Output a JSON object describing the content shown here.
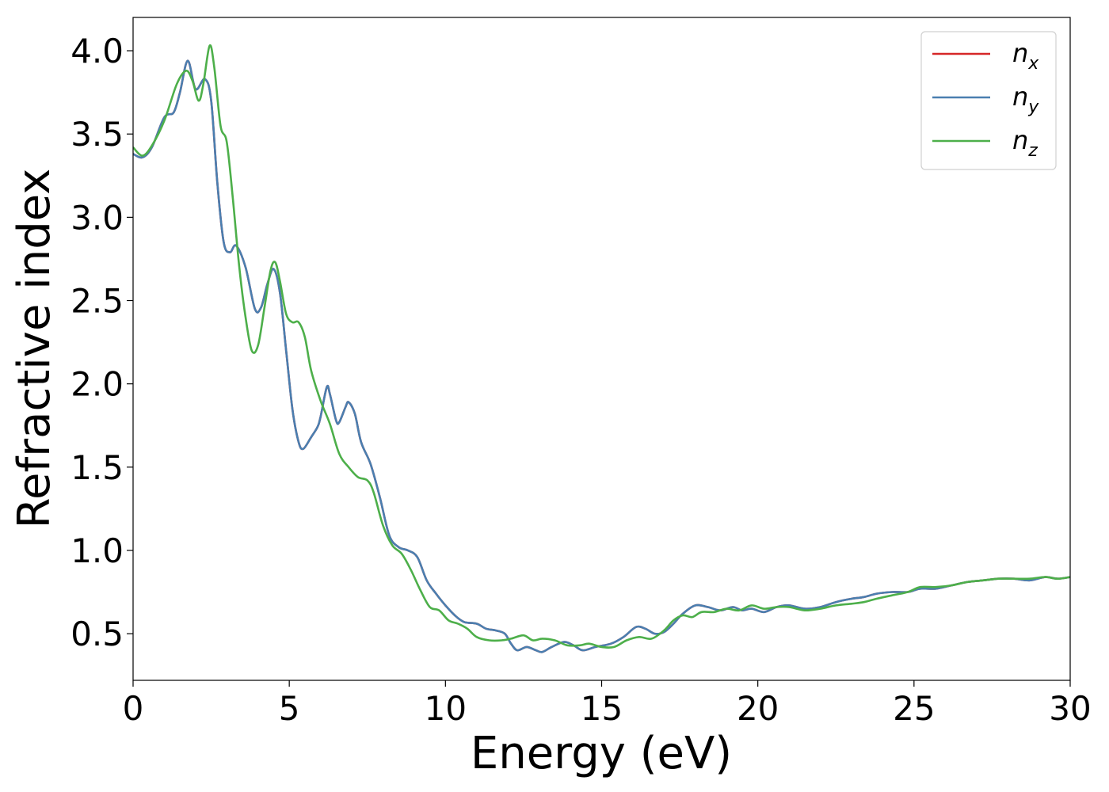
{
  "chart_data": {
    "type": "line",
    "title": "",
    "xlabel": "Energy (eV)",
    "ylabel": "Refractive index",
    "xlim": [
      0,
      30
    ],
    "ylim": [
      0.22,
      4.2
    ],
    "x_ticks": [
      "0",
      "5",
      "10",
      "15",
      "20",
      "25",
      "30"
    ],
    "y_ticks": [
      "0.5",
      "1.0",
      "1.5",
      "2.0",
      "2.5",
      "3.0",
      "3.5",
      "4.0"
    ],
    "grid": false,
    "legend_position": "top-right",
    "series": [
      {
        "name": "n_x",
        "legend_main": "n",
        "legend_sub": "x",
        "color": "#d62728",
        "points": [
          [
            0,
            3.38
          ],
          [
            0.3,
            3.36
          ],
          [
            0.6,
            3.42
          ],
          [
            1.0,
            3.6
          ],
          [
            1.3,
            3.63
          ],
          [
            1.5,
            3.75
          ],
          [
            1.75,
            3.94
          ],
          [
            2.0,
            3.77
          ],
          [
            2.3,
            3.83
          ],
          [
            2.5,
            3.7
          ],
          [
            2.7,
            3.2
          ],
          [
            2.9,
            2.85
          ],
          [
            3.1,
            2.79
          ],
          [
            3.3,
            2.83
          ],
          [
            3.6,
            2.7
          ],
          [
            3.9,
            2.45
          ],
          [
            4.1,
            2.46
          ],
          [
            4.3,
            2.6
          ],
          [
            4.5,
            2.69
          ],
          [
            4.7,
            2.55
          ],
          [
            4.9,
            2.2
          ],
          [
            5.1,
            1.85
          ],
          [
            5.3,
            1.65
          ],
          [
            5.45,
            1.61
          ],
          [
            5.7,
            1.68
          ],
          [
            5.9,
            1.74
          ],
          [
            6.0,
            1.8
          ],
          [
            6.2,
            1.98
          ],
          [
            6.3,
            1.94
          ],
          [
            6.5,
            1.78
          ],
          [
            6.6,
            1.77
          ],
          [
            6.8,
            1.86
          ],
          [
            6.9,
            1.89
          ],
          [
            7.1,
            1.82
          ],
          [
            7.3,
            1.65
          ],
          [
            7.6,
            1.52
          ],
          [
            7.9,
            1.32
          ],
          [
            8.2,
            1.09
          ],
          [
            8.5,
            1.02
          ],
          [
            8.8,
            1.0
          ],
          [
            9.1,
            0.96
          ],
          [
            9.4,
            0.82
          ],
          [
            9.7,
            0.74
          ],
          [
            10.0,
            0.67
          ],
          [
            10.3,
            0.61
          ],
          [
            10.6,
            0.57
          ],
          [
            11.0,
            0.56
          ],
          [
            11.3,
            0.53
          ],
          [
            11.6,
            0.52
          ],
          [
            11.9,
            0.5
          ],
          [
            12.1,
            0.44
          ],
          [
            12.3,
            0.4
          ],
          [
            12.6,
            0.42
          ],
          [
            12.9,
            0.4
          ],
          [
            13.1,
            0.39
          ],
          [
            13.4,
            0.42
          ],
          [
            13.8,
            0.45
          ],
          [
            14.1,
            0.43
          ],
          [
            14.4,
            0.4
          ],
          [
            14.8,
            0.42
          ],
          [
            15.3,
            0.44
          ],
          [
            15.7,
            0.48
          ],
          [
            16.1,
            0.54
          ],
          [
            16.4,
            0.53
          ],
          [
            16.7,
            0.5
          ],
          [
            17.0,
            0.51
          ],
          [
            17.3,
            0.56
          ],
          [
            17.6,
            0.62
          ],
          [
            18.0,
            0.67
          ],
          [
            18.4,
            0.66
          ],
          [
            18.8,
            0.64
          ],
          [
            19.2,
            0.66
          ],
          [
            19.5,
            0.64
          ],
          [
            19.8,
            0.65
          ],
          [
            20.2,
            0.63
          ],
          [
            20.6,
            0.66
          ],
          [
            21.0,
            0.67
          ],
          [
            21.5,
            0.65
          ],
          [
            22.0,
            0.66
          ],
          [
            22.5,
            0.69
          ],
          [
            23.0,
            0.71
          ],
          [
            23.4,
            0.72
          ],
          [
            23.8,
            0.74
          ],
          [
            24.3,
            0.75
          ],
          [
            24.8,
            0.75
          ],
          [
            25.2,
            0.77
          ],
          [
            25.7,
            0.77
          ],
          [
            26.2,
            0.79
          ],
          [
            26.7,
            0.81
          ],
          [
            27.2,
            0.82
          ],
          [
            27.7,
            0.83
          ],
          [
            28.2,
            0.83
          ],
          [
            28.7,
            0.82
          ],
          [
            29.2,
            0.84
          ],
          [
            29.6,
            0.83
          ],
          [
            30.0,
            0.84
          ]
        ]
      },
      {
        "name": "n_y",
        "legend_main": "n",
        "legend_sub": "y",
        "color": "#4a7fb0",
        "points": [
          [
            0,
            3.38
          ],
          [
            0.3,
            3.36
          ],
          [
            0.6,
            3.42
          ],
          [
            1.0,
            3.6
          ],
          [
            1.3,
            3.63
          ],
          [
            1.5,
            3.75
          ],
          [
            1.75,
            3.94
          ],
          [
            2.0,
            3.77
          ],
          [
            2.3,
            3.83
          ],
          [
            2.5,
            3.7
          ],
          [
            2.7,
            3.2
          ],
          [
            2.9,
            2.85
          ],
          [
            3.1,
            2.79
          ],
          [
            3.3,
            2.83
          ],
          [
            3.6,
            2.7
          ],
          [
            3.9,
            2.45
          ],
          [
            4.1,
            2.46
          ],
          [
            4.3,
            2.6
          ],
          [
            4.5,
            2.69
          ],
          [
            4.7,
            2.55
          ],
          [
            4.9,
            2.2
          ],
          [
            5.1,
            1.85
          ],
          [
            5.3,
            1.65
          ],
          [
            5.45,
            1.61
          ],
          [
            5.7,
            1.68
          ],
          [
            5.9,
            1.74
          ],
          [
            6.0,
            1.8
          ],
          [
            6.2,
            1.98
          ],
          [
            6.3,
            1.94
          ],
          [
            6.5,
            1.78
          ],
          [
            6.6,
            1.77
          ],
          [
            6.8,
            1.86
          ],
          [
            6.9,
            1.89
          ],
          [
            7.1,
            1.82
          ],
          [
            7.3,
            1.65
          ],
          [
            7.6,
            1.52
          ],
          [
            7.9,
            1.32
          ],
          [
            8.2,
            1.09
          ],
          [
            8.5,
            1.02
          ],
          [
            8.8,
            1.0
          ],
          [
            9.1,
            0.96
          ],
          [
            9.4,
            0.82
          ],
          [
            9.7,
            0.74
          ],
          [
            10.0,
            0.67
          ],
          [
            10.3,
            0.61
          ],
          [
            10.6,
            0.57
          ],
          [
            11.0,
            0.56
          ],
          [
            11.3,
            0.53
          ],
          [
            11.6,
            0.52
          ],
          [
            11.9,
            0.5
          ],
          [
            12.1,
            0.44
          ],
          [
            12.3,
            0.4
          ],
          [
            12.6,
            0.42
          ],
          [
            12.9,
            0.4
          ],
          [
            13.1,
            0.39
          ],
          [
            13.4,
            0.42
          ],
          [
            13.8,
            0.45
          ],
          [
            14.1,
            0.43
          ],
          [
            14.4,
            0.4
          ],
          [
            14.8,
            0.42
          ],
          [
            15.3,
            0.44
          ],
          [
            15.7,
            0.48
          ],
          [
            16.1,
            0.54
          ],
          [
            16.4,
            0.53
          ],
          [
            16.7,
            0.5
          ],
          [
            17.0,
            0.51
          ],
          [
            17.3,
            0.56
          ],
          [
            17.6,
            0.62
          ],
          [
            18.0,
            0.67
          ],
          [
            18.4,
            0.66
          ],
          [
            18.8,
            0.64
          ],
          [
            19.2,
            0.66
          ],
          [
            19.5,
            0.64
          ],
          [
            19.8,
            0.65
          ],
          [
            20.2,
            0.63
          ],
          [
            20.6,
            0.66
          ],
          [
            21.0,
            0.67
          ],
          [
            21.5,
            0.65
          ],
          [
            22.0,
            0.66
          ],
          [
            22.5,
            0.69
          ],
          [
            23.0,
            0.71
          ],
          [
            23.4,
            0.72
          ],
          [
            23.8,
            0.74
          ],
          [
            24.3,
            0.75
          ],
          [
            24.8,
            0.75
          ],
          [
            25.2,
            0.77
          ],
          [
            25.7,
            0.77
          ],
          [
            26.2,
            0.79
          ],
          [
            26.7,
            0.81
          ],
          [
            27.2,
            0.82
          ],
          [
            27.7,
            0.83
          ],
          [
            28.2,
            0.83
          ],
          [
            28.7,
            0.82
          ],
          [
            29.2,
            0.84
          ],
          [
            29.6,
            0.83
          ],
          [
            30.0,
            0.84
          ]
        ]
      },
      {
        "name": "n_z",
        "legend_main": "n",
        "legend_sub": "z",
        "color": "#4daf4a",
        "points": [
          [
            0,
            3.42
          ],
          [
            0.3,
            3.37
          ],
          [
            0.6,
            3.43
          ],
          [
            1.0,
            3.58
          ],
          [
            1.4,
            3.8
          ],
          [
            1.7,
            3.88
          ],
          [
            1.9,
            3.82
          ],
          [
            2.1,
            3.7
          ],
          [
            2.25,
            3.8
          ],
          [
            2.45,
            4.03
          ],
          [
            2.6,
            3.9
          ],
          [
            2.8,
            3.55
          ],
          [
            3.0,
            3.45
          ],
          [
            3.2,
            3.1
          ],
          [
            3.4,
            2.7
          ],
          [
            3.6,
            2.4
          ],
          [
            3.8,
            2.2
          ],
          [
            4.0,
            2.23
          ],
          [
            4.2,
            2.45
          ],
          [
            4.4,
            2.68
          ],
          [
            4.55,
            2.73
          ],
          [
            4.7,
            2.62
          ],
          [
            4.9,
            2.42
          ],
          [
            5.1,
            2.37
          ],
          [
            5.3,
            2.37
          ],
          [
            5.5,
            2.28
          ],
          [
            5.7,
            2.08
          ],
          [
            6.0,
            1.9
          ],
          [
            6.3,
            1.76
          ],
          [
            6.6,
            1.58
          ],
          [
            6.9,
            1.5
          ],
          [
            7.2,
            1.44
          ],
          [
            7.5,
            1.42
          ],
          [
            7.7,
            1.35
          ],
          [
            8.0,
            1.15
          ],
          [
            8.3,
            1.03
          ],
          [
            8.6,
            0.98
          ],
          [
            8.9,
            0.88
          ],
          [
            9.2,
            0.76
          ],
          [
            9.5,
            0.66
          ],
          [
            9.8,
            0.64
          ],
          [
            10.1,
            0.58
          ],
          [
            10.4,
            0.56
          ],
          [
            10.7,
            0.53
          ],
          [
            11.0,
            0.48
          ],
          [
            11.4,
            0.46
          ],
          [
            11.8,
            0.46
          ],
          [
            12.1,
            0.47
          ],
          [
            12.5,
            0.49
          ],
          [
            12.8,
            0.46
          ],
          [
            13.1,
            0.47
          ],
          [
            13.5,
            0.46
          ],
          [
            13.9,
            0.43
          ],
          [
            14.3,
            0.43
          ],
          [
            14.6,
            0.44
          ],
          [
            15.0,
            0.42
          ],
          [
            15.4,
            0.42
          ],
          [
            15.8,
            0.46
          ],
          [
            16.2,
            0.48
          ],
          [
            16.6,
            0.47
          ],
          [
            17.0,
            0.52
          ],
          [
            17.3,
            0.58
          ],
          [
            17.6,
            0.61
          ],
          [
            17.9,
            0.6
          ],
          [
            18.2,
            0.63
          ],
          [
            18.6,
            0.63
          ],
          [
            19.0,
            0.65
          ],
          [
            19.4,
            0.64
          ],
          [
            19.8,
            0.67
          ],
          [
            20.2,
            0.65
          ],
          [
            20.6,
            0.66
          ],
          [
            21.0,
            0.66
          ],
          [
            21.5,
            0.64
          ],
          [
            22.0,
            0.65
          ],
          [
            22.5,
            0.67
          ],
          [
            23.0,
            0.68
          ],
          [
            23.4,
            0.69
          ],
          [
            23.8,
            0.71
          ],
          [
            24.3,
            0.73
          ],
          [
            24.8,
            0.75
          ],
          [
            25.2,
            0.78
          ],
          [
            25.7,
            0.78
          ],
          [
            26.2,
            0.79
          ],
          [
            26.7,
            0.81
          ],
          [
            27.2,
            0.82
          ],
          [
            27.7,
            0.83
          ],
          [
            28.2,
            0.83
          ],
          [
            28.7,
            0.83
          ],
          [
            29.2,
            0.84
          ],
          [
            29.6,
            0.83
          ],
          [
            30.0,
            0.84
          ]
        ]
      }
    ]
  }
}
